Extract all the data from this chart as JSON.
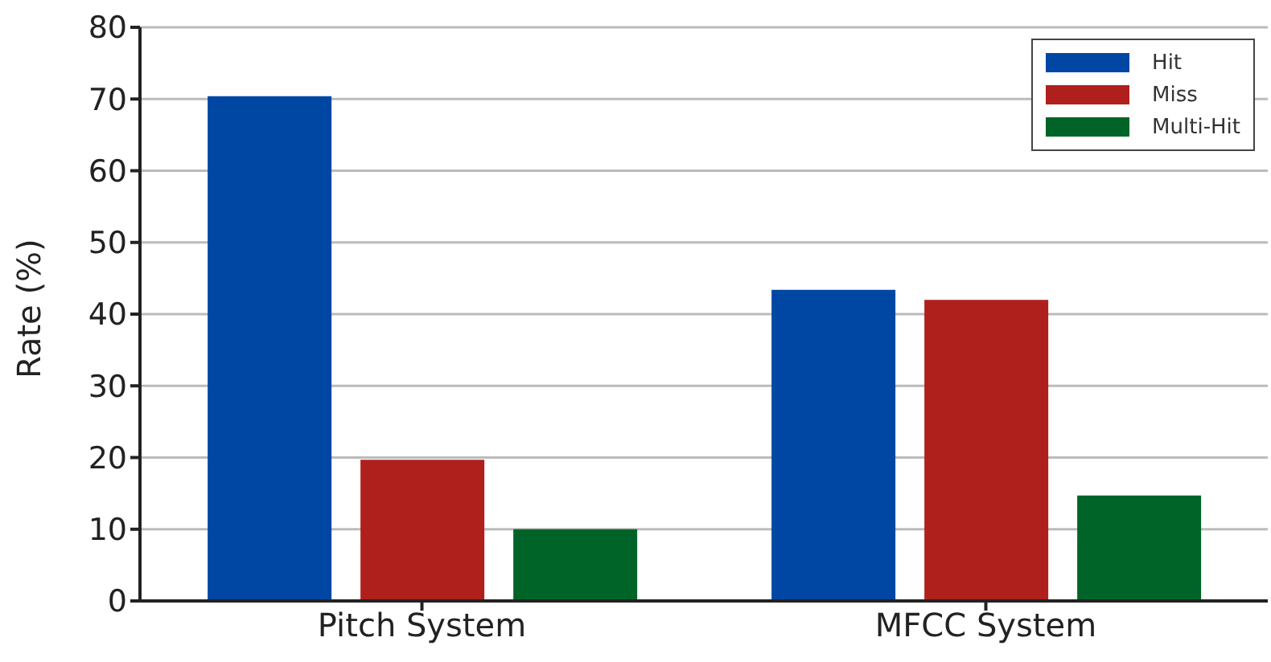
{
  "chart_data": {
    "type": "bar",
    "ylabel": "Rate (%)",
    "categories": [
      "Pitch System",
      "MFCC System"
    ],
    "series": [
      {
        "name": "Hit",
        "color": "#0047a3",
        "values": [
          70.4,
          43.4
        ]
      },
      {
        "name": "Miss",
        "color": "#af201d",
        "values": [
          19.7,
          42.0
        ]
      },
      {
        "name": "Multi-Hit",
        "color": "#006428",
        "values": [
          10.0,
          14.7
        ]
      }
    ],
    "ylim": [
      0,
      80
    ],
    "yticks": [
      0,
      10,
      20,
      30,
      40,
      50,
      60,
      70,
      80
    ],
    "grid": "y",
    "legend": "top right"
  }
}
